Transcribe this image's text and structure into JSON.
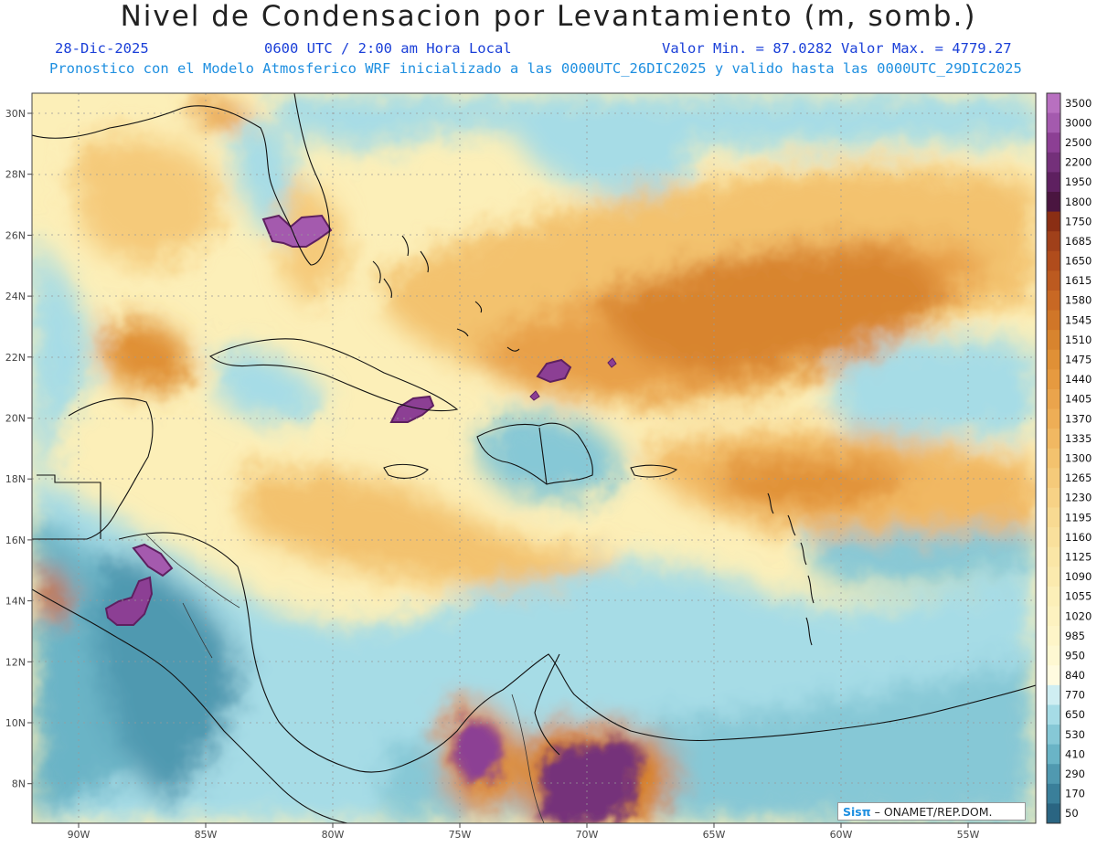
{
  "header": {
    "title": "Nivel de Condensacion por Levantamiento (m, somb.)",
    "date": "28-Dic-2025",
    "time": "0600 UTC / 2:00 am Hora Local",
    "minmax": "Valor Min. = 87.0282  Valor Max. = 4779.27",
    "model": "Pronostico con el Modelo Atmosferico WRF inicializado a las 0000UTC_26DIC2025 y valido hasta las  0000UTC_29DIC2025"
  },
  "axes": {
    "lon_ticks": [
      "90W",
      "85W",
      "80W",
      "75W",
      "70W",
      "65W",
      "60W",
      "55W"
    ],
    "lat_ticks": [
      "30N",
      "28N",
      "26N",
      "24N",
      "22N",
      "20N",
      "18N",
      "16N",
      "14N",
      "12N",
      "10N",
      "8N"
    ]
  },
  "colorbar": {
    "levels": [
      "3500",
      "3000",
      "2500",
      "2200",
      "1950",
      "1800",
      "1750",
      "1685",
      "1650",
      "1615",
      "1580",
      "1545",
      "1510",
      "1475",
      "1440",
      "1405",
      "1370",
      "1335",
      "1300",
      "1265",
      "1230",
      "1195",
      "1160",
      "1125",
      "1090",
      "1055",
      "1020",
      "985",
      "950",
      "840",
      "770",
      "650",
      "530",
      "410",
      "290",
      "170",
      "50"
    ],
    "colors": [
      "#b870c0",
      "#a45aae",
      "#8c3f94",
      "#74307a",
      "#5e2060",
      "#4a1540",
      "#8a2e14",
      "#a0401a",
      "#b04c1c",
      "#bc5a20",
      "#c86824",
      "#d07628",
      "#d8842e",
      "#e09036",
      "#e69a40",
      "#eaa44c",
      "#eeae56",
      "#f1b862",
      "#f3c26e",
      "#f5ca7a",
      "#f7d286",
      "#f8da92",
      "#f9e09c",
      "#fae6a6",
      "#fbeaae",
      "#fcefb8",
      "#fdf2c0",
      "#fef5c8",
      "#fef8d2",
      "#fffbe0",
      "#cfeef2",
      "#a6dce6",
      "#86c8d6",
      "#6ab4c6",
      "#5099b0",
      "#3a7f9a",
      "#2a6582"
    ]
  },
  "credit": {
    "logo": "Sisπ",
    "text": " – ONAMET/REP.DOM."
  }
}
